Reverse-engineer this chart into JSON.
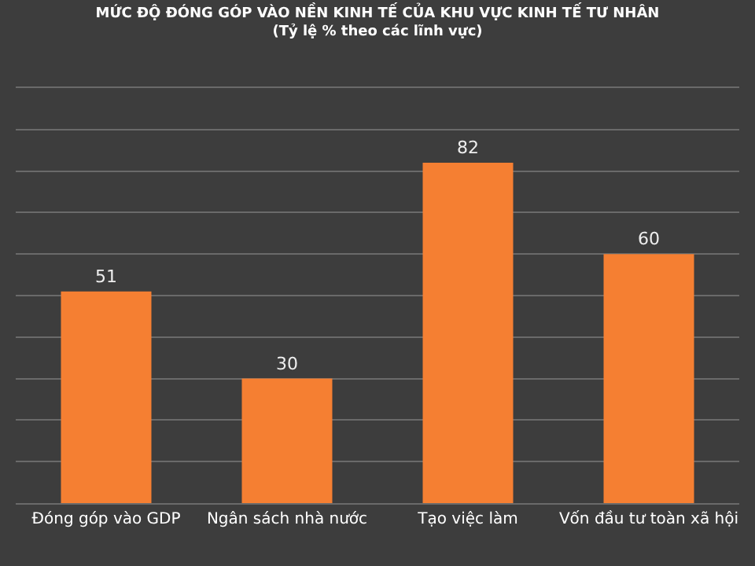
{
  "chart_data": {
    "type": "bar",
    "title": "MỨC ĐỘ ĐÓNG GÓP VÀO NỀN KINH TẾ CỦA KHU VỰC KINH TẾ TƯ NHÂN",
    "subtitle": "(Tỷ lệ % theo các lĩnh vực)",
    "categories": [
      "Đóng góp vào GDP",
      "Ngân sách nhà nước",
      "Tạo việc làm",
      "Vốn đầu tư toàn xã hội"
    ],
    "values": [
      51,
      30,
      82,
      60
    ],
    "color": "#f57f32",
    "data_labels": true,
    "grid": "y",
    "tick_labels": "x",
    "legend": false,
    "ylim": [
      0,
      100
    ],
    "yticks": [
      {
        "value": 10,
        "label": null
      },
      {
        "value": 20,
        "label": null
      },
      {
        "value": 30,
        "label": null
      },
      {
        "value": 40,
        "label": null
      },
      {
        "value": 50,
        "label": null
      },
      {
        "value": 60,
        "label": null
      },
      {
        "value": 70,
        "label": null
      },
      {
        "value": 80,
        "label": null
      },
      {
        "value": 90,
        "label": null
      }
    ]
  }
}
